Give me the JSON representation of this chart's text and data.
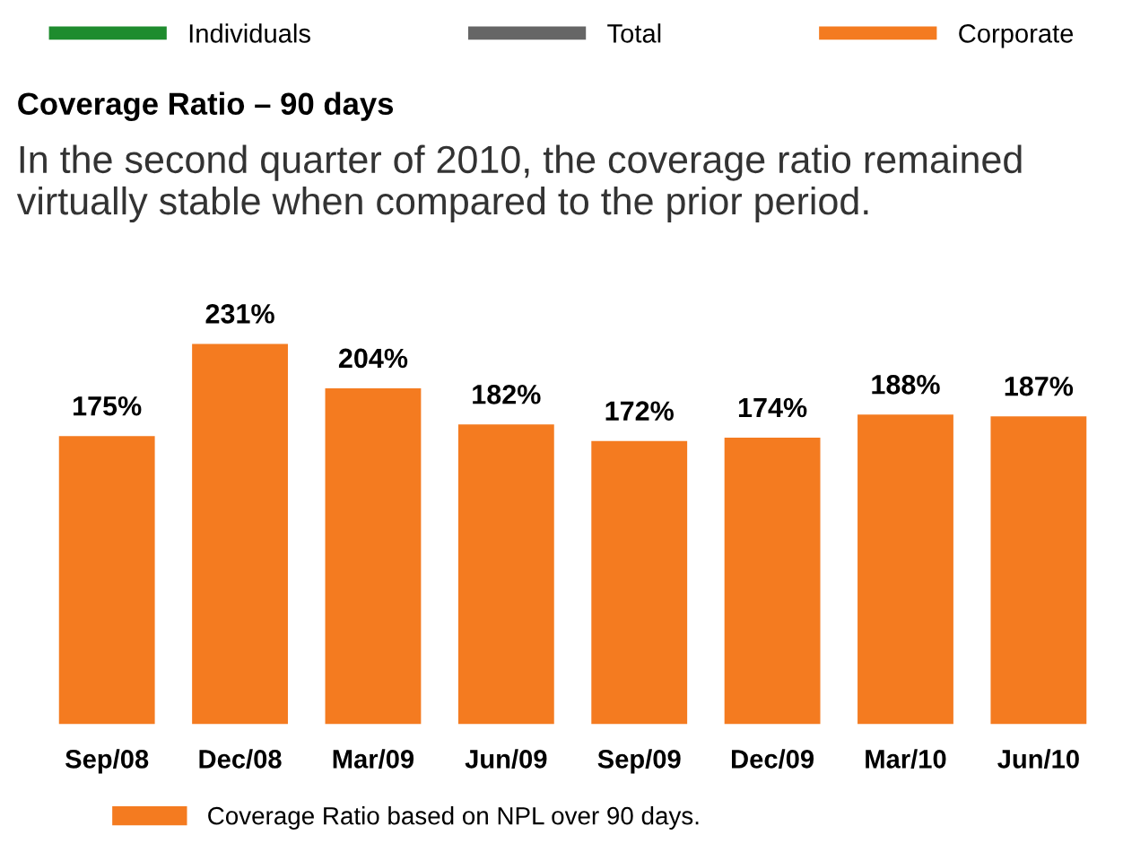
{
  "chart_data": {
    "type": "bar",
    "title": "Coverage Ratio – 90 days",
    "subtitle": "In the second quarter of 2010, the coverage ratio remained virtually stable when compared to the prior period.",
    "categories": [
      "Sep/08",
      "Dec/08",
      "Mar/09",
      "Jun/09",
      "Sep/09",
      "Dec/09",
      "Mar/10",
      "Jun/10"
    ],
    "series": [
      {
        "name": "Individuals",
        "color": "#1e8c2e",
        "values": [
          null,
          null,
          null,
          null,
          null,
          null,
          null,
          null
        ]
      },
      {
        "name": "Total",
        "color": "#666666",
        "values": [
          null,
          null,
          null,
          null,
          null,
          null,
          null,
          null
        ]
      },
      {
        "name": "Corporate",
        "color": "#f47b20",
        "values": [
          null,
          null,
          null,
          null,
          null,
          null,
          null,
          null
        ]
      },
      {
        "name": "Coverage Ratio based on NPL over 90 days.",
        "color": "#f47b20",
        "values": [
          175,
          231,
          204,
          182,
          172,
          174,
          188,
          187
        ],
        "value_labels": [
          "175%",
          "231%",
          "204%",
          "182%",
          "172%",
          "174%",
          "188%",
          "187%"
        ]
      }
    ],
    "legend": "top",
    "grid": false
  }
}
